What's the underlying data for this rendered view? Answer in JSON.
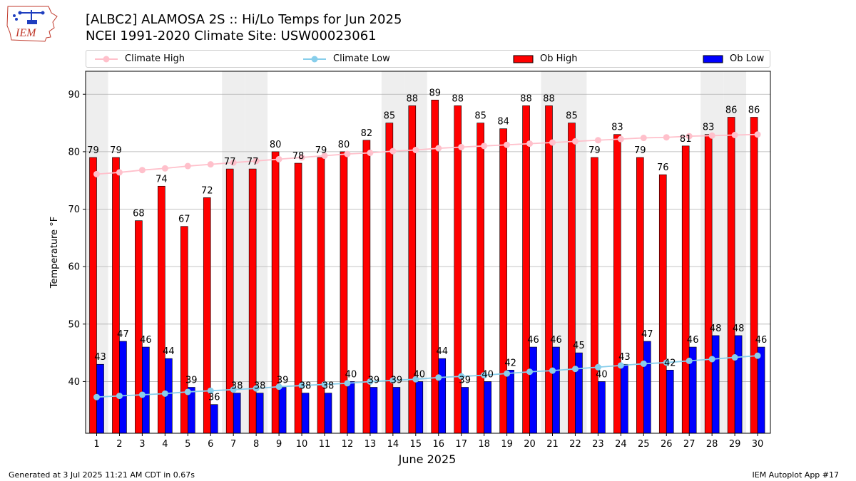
{
  "header": {
    "title_line1": "[ALBC2] ALAMOSA 2S :: Hi/Lo Temps for Jun 2025",
    "title_line2": "NCEI 1991-2020 Climate Site: USW00023061",
    "logo_text": "IEM"
  },
  "legend": {
    "climate_high": "Climate High",
    "climate_low": "Climate Low",
    "ob_high": "Ob High",
    "ob_low": "Ob Low"
  },
  "footer": {
    "generated": "Generated at 3 Jul 2025 11:21 AM CDT in 0.67s",
    "app": "IEM Autoplot App #17"
  },
  "colors": {
    "ob_high": "#ff0000",
    "ob_low": "#0000ff",
    "climate_high": "#ffc0cb",
    "climate_low": "#87ceeb",
    "weekend_shade": "#eeeeee",
    "grid": "#b0b0b0"
  },
  "chart_data": {
    "type": "bar",
    "title": "[ALBC2] ALAMOSA 2S :: Hi/Lo Temps for Jun 2025",
    "xlabel": "June 2025",
    "ylabel": "Temperature °F",
    "ylabel_main": "Temperature ",
    "ylabel_unit": "°F",
    "ylim": [
      31,
      94
    ],
    "yticks": [
      40,
      50,
      60,
      70,
      80,
      90
    ],
    "grid": true,
    "legend_position": "top",
    "categories": [
      "1",
      "2",
      "3",
      "4",
      "5",
      "6",
      "7",
      "8",
      "9",
      "10",
      "11",
      "12",
      "13",
      "14",
      "15",
      "16",
      "17",
      "18",
      "19",
      "20",
      "21",
      "22",
      "23",
      "24",
      "25",
      "26",
      "27",
      "28",
      "29",
      "30"
    ],
    "shaded_days": [
      1,
      7,
      8,
      14,
      15,
      21,
      22,
      28,
      29
    ],
    "series": [
      {
        "name": "Ob High",
        "kind": "bar",
        "values": [
          79,
          79,
          68,
          74,
          67,
          72,
          77,
          77,
          80,
          78,
          79,
          80,
          82,
          85,
          88,
          89,
          88,
          85,
          84,
          88,
          88,
          85,
          79,
          83,
          79,
          76,
          81,
          83,
          86,
          86
        ]
      },
      {
        "name": "Ob Low",
        "kind": "bar",
        "values": [
          43,
          47,
          46,
          44,
          39,
          36,
          38,
          38,
          39,
          38,
          38,
          40,
          39,
          39,
          40,
          44,
          39,
          40,
          42,
          46,
          46,
          45,
          40,
          43,
          47,
          42,
          46,
          48,
          48,
          46
        ]
      },
      {
        "name": "Climate High",
        "kind": "line",
        "values": [
          76.1,
          76.4,
          76.8,
          77.1,
          77.5,
          77.8,
          78.1,
          78.4,
          78.7,
          79.0,
          79.3,
          79.6,
          79.8,
          80.1,
          80.3,
          80.6,
          80.8,
          81.0,
          81.2,
          81.4,
          81.6,
          81.8,
          82.0,
          82.2,
          82.4,
          82.5,
          82.7,
          82.8,
          82.9,
          83.0
        ]
      },
      {
        "name": "Climate Low",
        "kind": "line",
        "values": [
          37.3,
          37.5,
          37.7,
          37.9,
          38.2,
          38.4,
          38.6,
          38.8,
          39.1,
          39.3,
          39.5,
          39.7,
          40.0,
          40.2,
          40.4,
          40.7,
          40.9,
          41.1,
          41.4,
          41.7,
          41.9,
          42.2,
          42.5,
          42.8,
          43.1,
          43.3,
          43.6,
          43.9,
          44.2,
          44.5
        ]
      }
    ]
  }
}
